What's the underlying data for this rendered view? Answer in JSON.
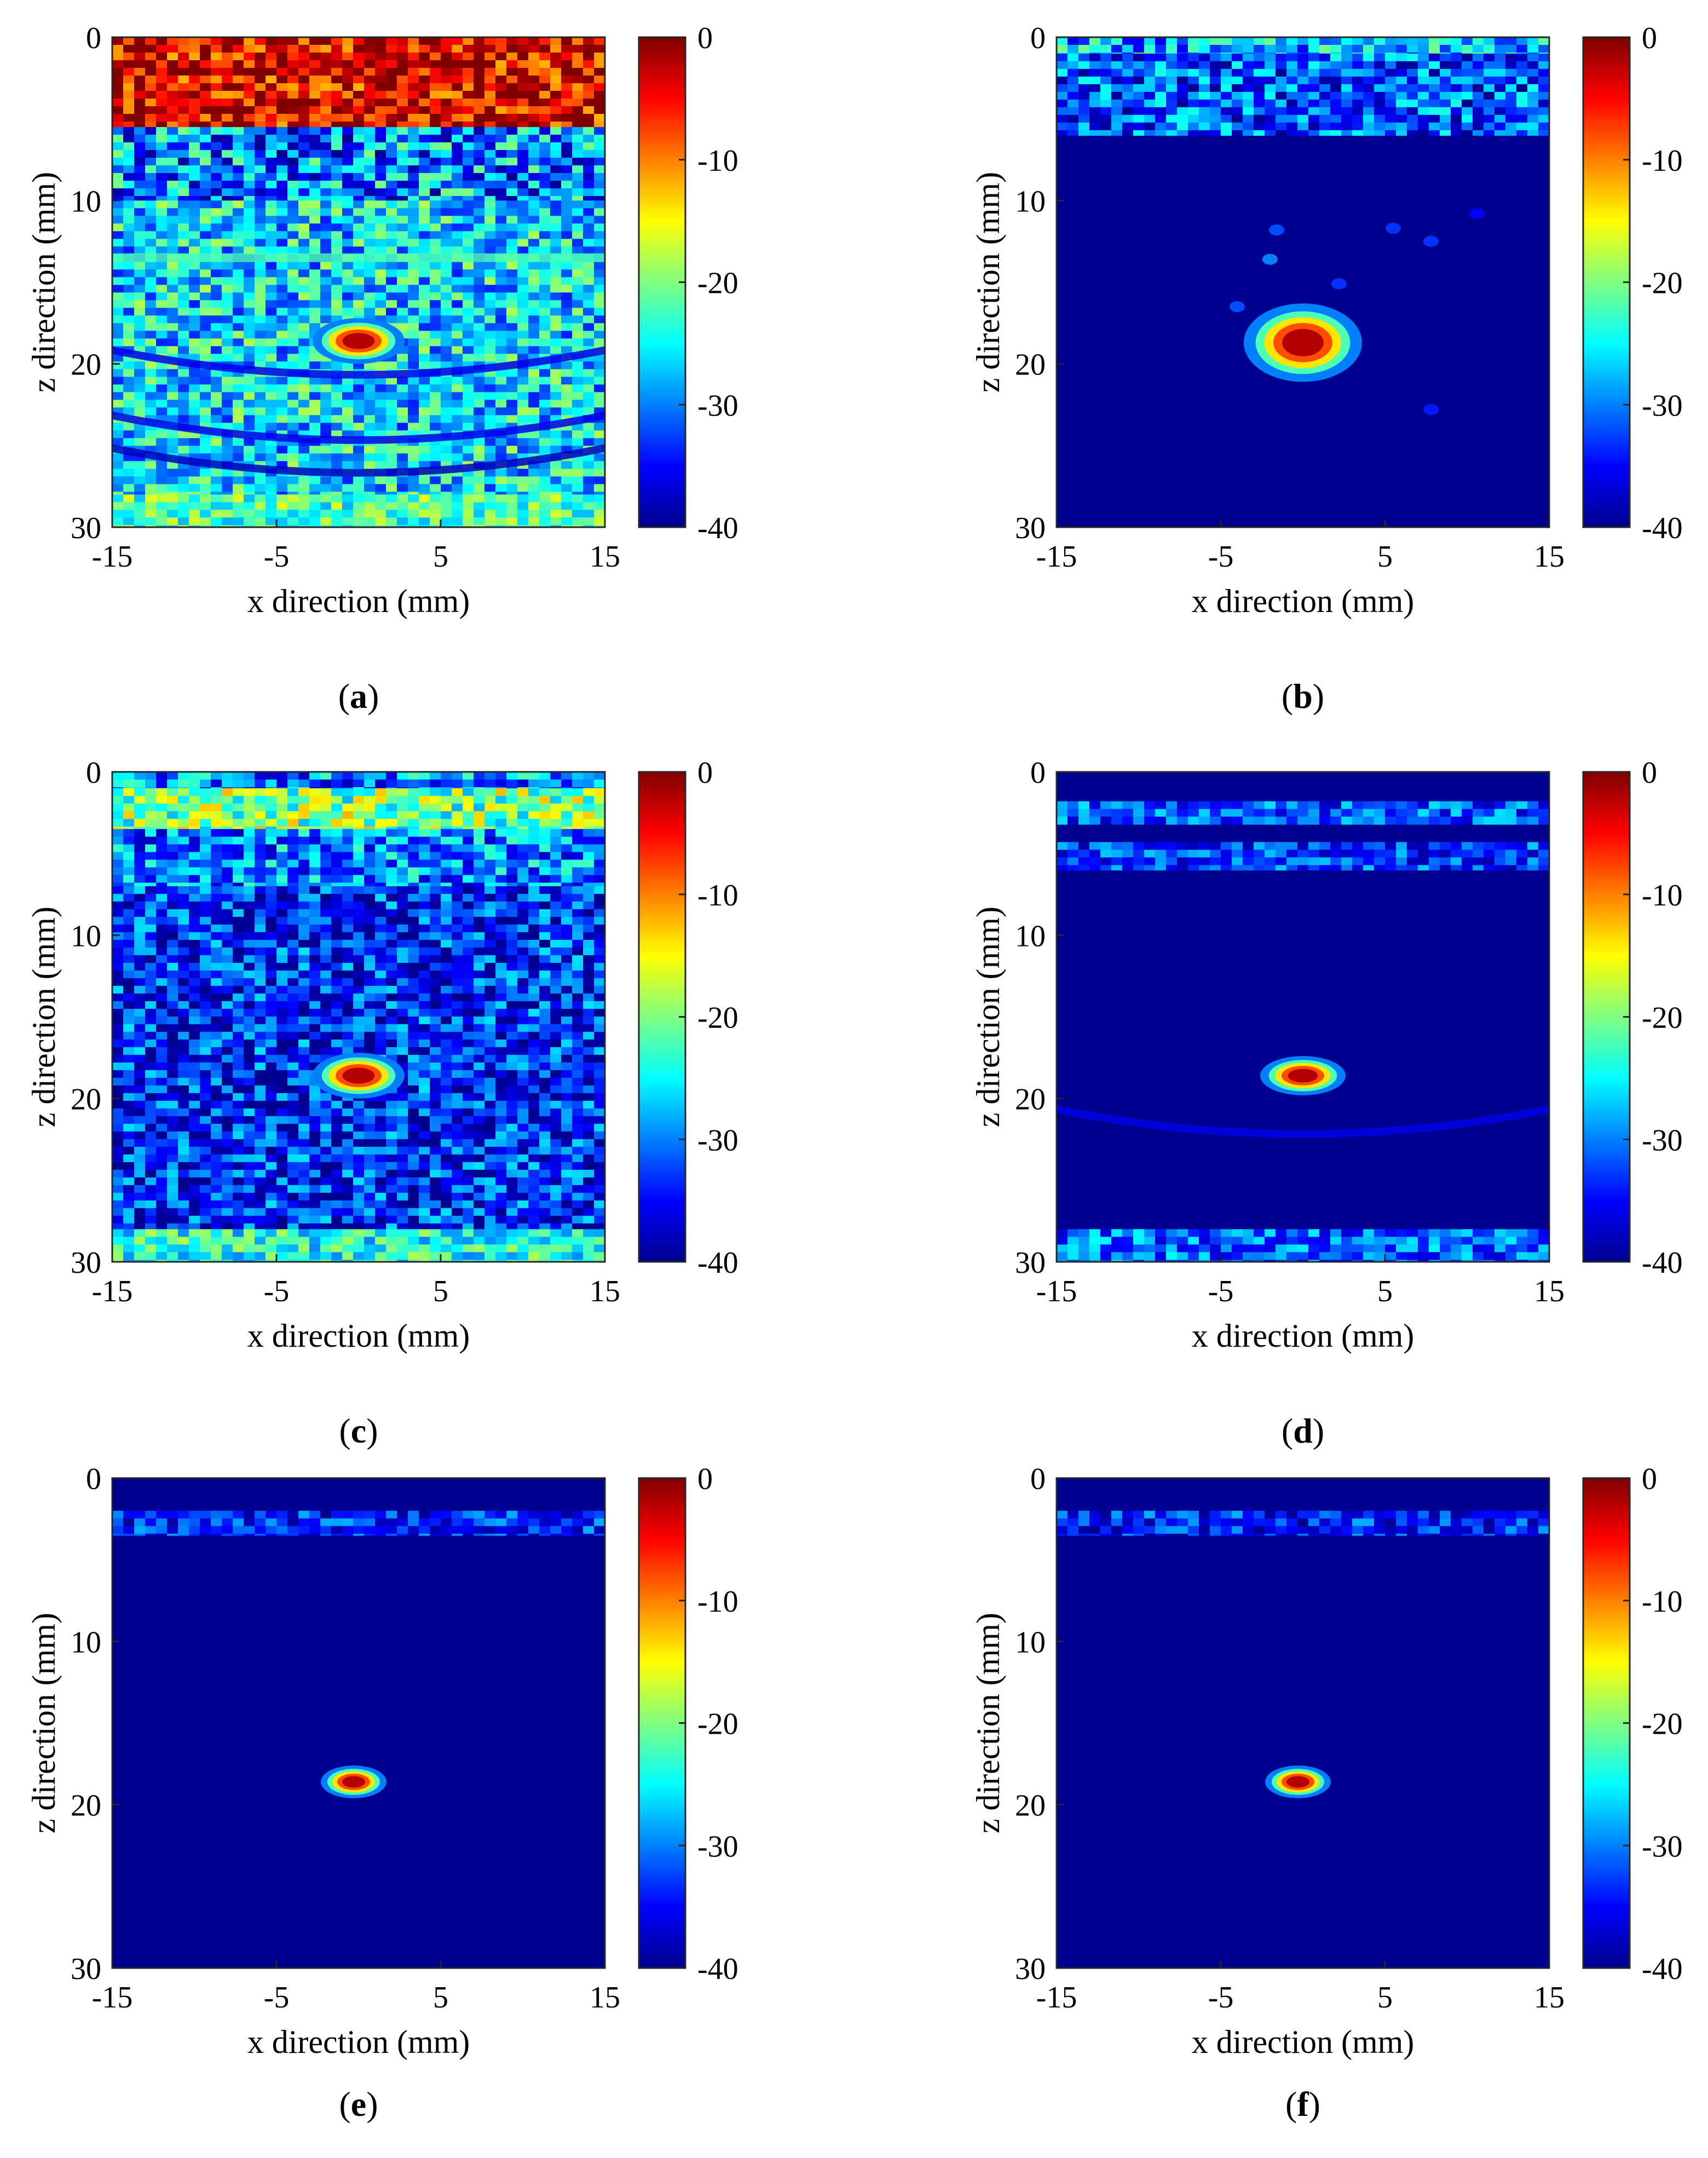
{
  "figure": {
    "background": "#ffffff",
    "colormap": [
      "#00008f",
      "#0000ff",
      "#0080ff",
      "#00ffff",
      "#80ff80",
      "#ffff00",
      "#ff8000",
      "#ff0000",
      "#800000"
    ]
  },
  "chart_data": [
    {
      "type": "heatmap",
      "panel_label": "a",
      "xlabel": "x direction (mm)",
      "ylabel": "z direction (mm)",
      "xlim": [
        -15,
        15
      ],
      "ylim": [
        0,
        30
      ],
      "xticks": [
        "-15",
        "-5",
        "5",
        "15"
      ],
      "yticks": [
        "0",
        "10",
        "20",
        "30"
      ],
      "colorbar": {
        "range": [
          -40,
          0
        ],
        "ticks": [
          "0",
          "-10",
          "-20",
          "-30",
          "-40"
        ]
      },
      "background_level": -26,
      "features": [
        {
          "kind": "band",
          "z": [
            0,
            5.5
          ],
          "level": -4,
          "variability": 8
        },
        {
          "kind": "band",
          "z": [
            5.5,
            10
          ],
          "level": -30,
          "variability": 10
        },
        {
          "kind": "band",
          "z": [
            10,
            28
          ],
          "level": -26,
          "variability": 8
        },
        {
          "kind": "band",
          "z": [
            28,
            30
          ],
          "level": -22,
          "variability": 6
        },
        {
          "kind": "layer",
          "z": 13.5,
          "level": -22
        },
        {
          "kind": "arc",
          "z": 20.5,
          "level": -36
        },
        {
          "kind": "arc",
          "z": 24.5,
          "level": -36
        },
        {
          "kind": "arc",
          "z": 26.5,
          "level": -38
        },
        {
          "kind": "target",
          "x": 0,
          "z": 18.6,
          "level": -2,
          "rx": 1.4,
          "rz": 0.7
        }
      ]
    },
    {
      "type": "heatmap",
      "panel_label": "b",
      "xlabel": "x direction (mm)",
      "ylabel": "z direction (mm)",
      "xlim": [
        -15,
        15
      ],
      "ylim": [
        0,
        30
      ],
      "xticks": [
        "-15",
        "-5",
        "5",
        "15"
      ],
      "yticks": [
        "0",
        "10",
        "20",
        "30"
      ],
      "colorbar": {
        "range": [
          -40,
          0
        ],
        "ticks": [
          "0",
          "-10",
          "-20",
          "-30",
          "-40"
        ]
      },
      "background_level": -40,
      "features": [
        {
          "kind": "band",
          "z": [
            0,
            1
          ],
          "level": -28,
          "variability": 8
        },
        {
          "kind": "band",
          "z": [
            1,
            6
          ],
          "level": -32,
          "variability": 8
        },
        {
          "kind": "speckle",
          "x": -2,
          "z": 13.6,
          "level": -30
        },
        {
          "kind": "speckle",
          "x": -1.6,
          "z": 11.8,
          "level": -32
        },
        {
          "kind": "speckle",
          "x": 2.2,
          "z": 15.1,
          "level": -33
        },
        {
          "kind": "speckle",
          "x": 5.5,
          "z": 11.7,
          "level": -33
        },
        {
          "kind": "speckle",
          "x": 7.8,
          "z": 12.5,
          "level": -33
        },
        {
          "kind": "speckle",
          "x": 10.6,
          "z": 10.8,
          "level": -35
        },
        {
          "kind": "speckle",
          "x": -4,
          "z": 16.5,
          "level": -32
        },
        {
          "kind": "speckle",
          "x": 7.8,
          "z": 22.8,
          "level": -34
        },
        {
          "kind": "target",
          "x": 0,
          "z": 18.7,
          "level": -2,
          "rx": 1.8,
          "rz": 1.2
        }
      ]
    },
    {
      "type": "heatmap",
      "panel_label": "c",
      "xlabel": "x direction (mm)",
      "ylabel": "z direction (mm)",
      "xlim": [
        -15,
        15
      ],
      "ylim": [
        0,
        30
      ],
      "xticks": [
        "-15",
        "-5",
        "5",
        "15"
      ],
      "yticks": [
        "0",
        "10",
        "20",
        "30"
      ],
      "colorbar": {
        "range": [
          -40,
          0
        ],
        "ticks": [
          "0",
          "-10",
          "-20",
          "-30",
          "-40"
        ]
      },
      "background_level": -32,
      "features": [
        {
          "kind": "band",
          "z": [
            0,
            1
          ],
          "level": -30,
          "variability": 8
        },
        {
          "kind": "band",
          "z": [
            1,
            3.5
          ],
          "level": -20,
          "variability": 8
        },
        {
          "kind": "band",
          "z": [
            3.5,
            7
          ],
          "level": -30,
          "variability": 8
        },
        {
          "kind": "band",
          "z": [
            7,
            28
          ],
          "level": -34,
          "variability": 8
        },
        {
          "kind": "band",
          "z": [
            28,
            30
          ],
          "level": -24,
          "variability": 6
        },
        {
          "kind": "target",
          "x": 0,
          "z": 18.6,
          "level": -2,
          "rx": 1.4,
          "rz": 0.7
        }
      ]
    },
    {
      "type": "heatmap",
      "panel_label": "d",
      "xlabel": "x direction (mm)",
      "ylabel": "z direction (mm)",
      "xlim": [
        -15,
        15
      ],
      "ylim": [
        0,
        30
      ],
      "xticks": [
        "-15",
        "-5",
        "5",
        "15"
      ],
      "yticks": [
        "0",
        "10",
        "20",
        "30"
      ],
      "colorbar": {
        "range": [
          -40,
          0
        ],
        "ticks": [
          "0",
          "-10",
          "-20",
          "-30",
          "-40"
        ]
      },
      "background_level": -40,
      "features": [
        {
          "kind": "band",
          "z": [
            1.8,
            3.2
          ],
          "level": -32,
          "variability": 6
        },
        {
          "kind": "band",
          "z": [
            4.3,
            6
          ],
          "level": -33,
          "variability": 6
        },
        {
          "kind": "band",
          "z": [
            28,
            30
          ],
          "level": -31,
          "variability": 6
        },
        {
          "kind": "arc",
          "z": 22,
          "level": -36
        },
        {
          "kind": "target",
          "x": 0,
          "z": 18.6,
          "level": -2,
          "rx": 1.3,
          "rz": 0.6
        }
      ]
    },
    {
      "type": "heatmap",
      "panel_label": "e",
      "xlabel": "x direction (mm)",
      "ylabel": "z direction (mm)",
      "xlim": [
        -15,
        15
      ],
      "ylim": [
        0,
        30
      ],
      "xticks": [
        "-15",
        "-5",
        "5",
        "15"
      ],
      "yticks": [
        "0",
        "10",
        "20",
        "30"
      ],
      "colorbar": {
        "range": [
          -40,
          0
        ],
        "ticks": [
          "0",
          "-10",
          "-20",
          "-30",
          "-40"
        ]
      },
      "background_level": -40,
      "features": [
        {
          "kind": "band",
          "z": [
            2,
            3.5
          ],
          "level": -34,
          "variability": 6
        },
        {
          "kind": "target",
          "x": -0.3,
          "z": 18.6,
          "level": -2,
          "rx": 1.0,
          "rz": 0.5
        }
      ]
    },
    {
      "type": "heatmap",
      "panel_label": "f",
      "xlabel": "x direction (mm)",
      "ylabel": "z direction (mm)",
      "xlim": [
        -15,
        15
      ],
      "ylim": [
        0,
        30
      ],
      "xticks": [
        "-15",
        "-5",
        "5",
        "15"
      ],
      "yticks": [
        "0",
        "10",
        "20",
        "30"
      ],
      "colorbar": {
        "range": [
          -40,
          0
        ],
        "ticks": [
          "0",
          "-10",
          "-20",
          "-30",
          "-40"
        ]
      },
      "background_level": -40,
      "features": [
        {
          "kind": "band",
          "z": [
            2,
            3.5
          ],
          "level": -34,
          "variability": 6
        },
        {
          "kind": "target",
          "x": -0.3,
          "z": 18.6,
          "level": -2,
          "rx": 1.0,
          "rz": 0.5
        }
      ]
    }
  ]
}
